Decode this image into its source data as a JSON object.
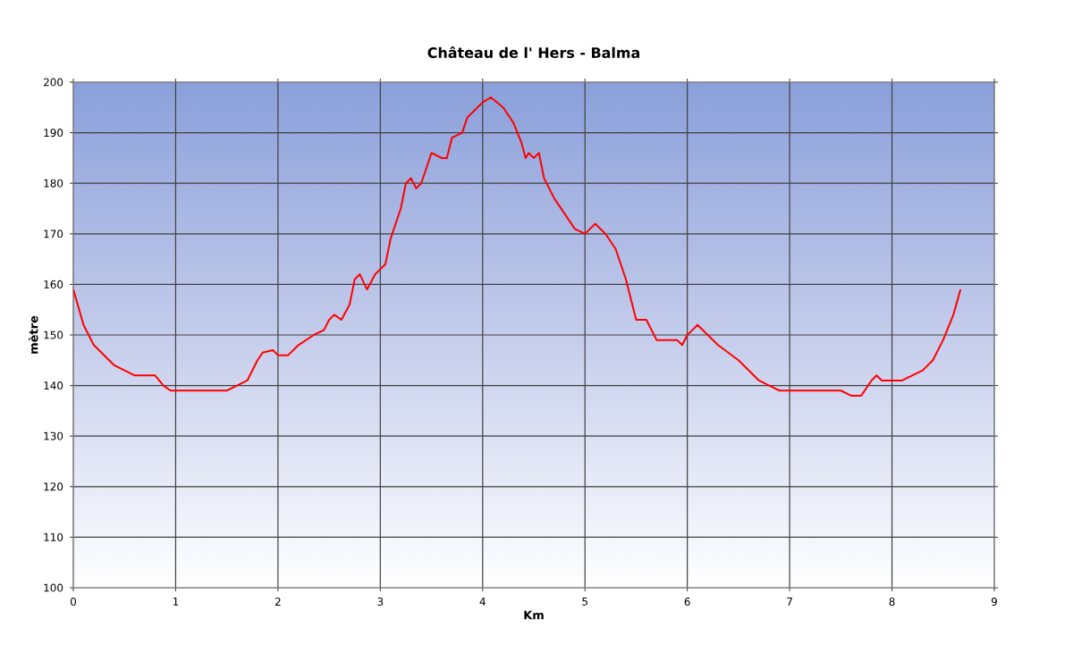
{
  "chart_data": {
    "type": "line",
    "title": "Château de l' Hers - Balma",
    "xlabel": "Km",
    "ylabel": "mètre",
    "xlim": [
      0,
      9
    ],
    "xticks": [
      0,
      1,
      2,
      3,
      4,
      5,
      6,
      7,
      8,
      9
    ],
    "ylim": [
      100,
      200
    ],
    "yticks": [
      100,
      110,
      120,
      130,
      140,
      150,
      160,
      170,
      180,
      190,
      200
    ],
    "grid": true,
    "marker": "none",
    "line_style": "solid",
    "series": [
      {
        "color": "#ff0000",
        "x": [
          0,
          0.1,
          0.2,
          0.3,
          0.4,
          0.5,
          0.6,
          0.75,
          0.8,
          0.88,
          0.95,
          1.0,
          1.2,
          1.4,
          1.5,
          1.6,
          1.7,
          1.8,
          1.85,
          1.95,
          2.0,
          2.1,
          2.2,
          2.35,
          2.45,
          2.5,
          2.55,
          2.62,
          2.7,
          2.75,
          2.8,
          2.87,
          2.95,
          3.0,
          3.05,
          3.1,
          3.2,
          3.25,
          3.3,
          3.35,
          3.4,
          3.45,
          3.5,
          3.6,
          3.65,
          3.7,
          3.8,
          3.85,
          3.95,
          4.0,
          4.08,
          4.2,
          4.3,
          4.38,
          4.42,
          4.45,
          4.5,
          4.55,
          4.6,
          4.7,
          4.8,
          4.9,
          5.0,
          5.05,
          5.1,
          5.2,
          5.3,
          5.4,
          5.5,
          5.6,
          5.7,
          5.8,
          5.9,
          5.95,
          6.0,
          6.05,
          6.1,
          6.2,
          6.3,
          6.5,
          6.7,
          6.8,
          6.9,
          7.0,
          7.3,
          7.5,
          7.6,
          7.7,
          7.8,
          7.85,
          7.9,
          8.1,
          8.3,
          8.4,
          8.5,
          8.6,
          8.67
        ],
        "values": [
          159,
          152,
          148,
          146,
          144,
          143,
          142,
          142,
          142,
          140,
          139,
          139,
          139,
          139,
          139,
          140,
          141,
          145,
          146.5,
          147,
          146,
          146,
          148,
          150,
          151,
          153,
          154,
          153,
          156,
          161,
          162,
          159,
          162,
          163,
          164,
          169,
          175,
          180,
          181,
          179,
          180,
          183,
          186,
          185,
          185,
          189,
          190,
          193,
          195,
          196,
          197,
          195,
          192,
          188,
          185,
          186,
          185,
          186,
          181,
          177,
          174,
          171,
          170,
          171,
          172,
          170,
          167,
          161,
          153,
          153,
          149,
          149,
          149,
          148,
          150,
          151,
          152,
          150,
          148,
          145,
          141,
          140,
          139,
          139,
          139,
          139,
          138,
          138,
          141,
          142,
          141,
          141,
          143,
          145,
          149,
          154,
          159
        ]
      }
    ]
  }
}
